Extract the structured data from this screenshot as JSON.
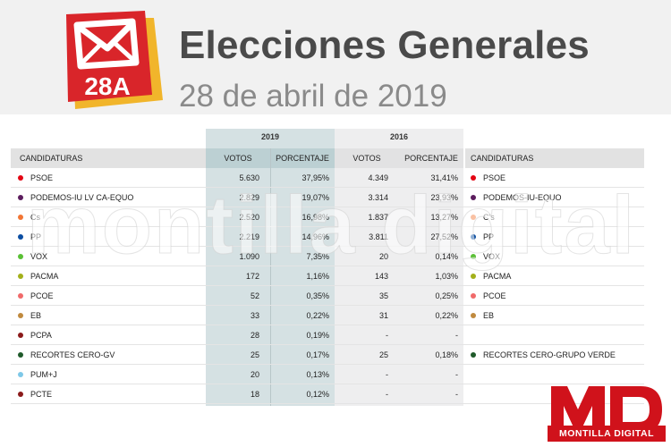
{
  "header": {
    "logo_text": "28A",
    "title": "Elecciones Generales",
    "subtitle": "28 de abril de 2019"
  },
  "table": {
    "year_2019": "2019",
    "year_2016": "2016",
    "headers": {
      "candidaturas_left": "CANDIDATURAS",
      "votos_2019": "VOTOS",
      "porcentaje_2019": "PORCENTAJE",
      "votos_2016": "VOTOS",
      "porcentaje_2016": "PORCENTAJE",
      "candidaturas_right": "CANDIDATURAS"
    },
    "rows": [
      {
        "party": "PSOE",
        "color": "#e30613",
        "votos_2019": "5.630",
        "pct_2019": "37,95%",
        "votos_2016": "4.349",
        "pct_2016": "31,41%",
        "party_2016": "PSOE",
        "color_2016": "#e30613"
      },
      {
        "party": "PODEMOS-IU LV CA-EQUO",
        "color": "#5c1d5e",
        "votos_2019": "2.829",
        "pct_2019": "19,07%",
        "votos_2016": "3.314",
        "pct_2016": "23,93%",
        "party_2016": "PODEMOS-IU-EQUO",
        "color_2016": "#5c1d5e"
      },
      {
        "party": "Cs",
        "color": "#f27533",
        "votos_2019": "2.520",
        "pct_2019": "16,98%",
        "votos_2016": "1.837",
        "pct_2016": "13,27%",
        "party_2016": "C's",
        "color_2016": "#f27533"
      },
      {
        "party": "PP",
        "color": "#0b4ea2",
        "votos_2019": "2.219",
        "pct_2019": "14,96%",
        "votos_2016": "3.811",
        "pct_2016": "27,52%",
        "party_2016": "PP",
        "color_2016": "#0b4ea2"
      },
      {
        "party": "VOX",
        "color": "#5ac035",
        "votos_2019": "1.090",
        "pct_2019": "7,35%",
        "votos_2016": "20",
        "pct_2016": "0,14%",
        "party_2016": "VOX",
        "color_2016": "#5ac035"
      },
      {
        "party": "PACMA",
        "color": "#a3b01a",
        "votos_2019": "172",
        "pct_2019": "1,16%",
        "votos_2016": "143",
        "pct_2016": "1,03%",
        "party_2016": "PACMA",
        "color_2016": "#a3b01a"
      },
      {
        "party": "PCOE",
        "color": "#f06a6a",
        "votos_2019": "52",
        "pct_2019": "0,35%",
        "votos_2016": "35",
        "pct_2016": "0,25%",
        "party_2016": "PCOE",
        "color_2016": "#f06a6a"
      },
      {
        "party": "EB",
        "color": "#c08a3e",
        "votos_2019": "33",
        "pct_2019": "0,22%",
        "votos_2016": "31",
        "pct_2016": "0,22%",
        "party_2016": "EB",
        "color_2016": "#c08a3e"
      },
      {
        "party": "PCPA",
        "color": "#8b1a1a",
        "votos_2019": "28",
        "pct_2019": "0,19%",
        "votos_2016": "-",
        "pct_2016": "-",
        "party_2016": "",
        "color_2016": ""
      },
      {
        "party": "RECORTES CERO-GV",
        "color": "#1f5a2a",
        "votos_2019": "25",
        "pct_2019": "0,17%",
        "votos_2016": "25",
        "pct_2016": "0,18%",
        "party_2016": "RECORTES CERO-GRUPO VERDE",
        "color_2016": "#1f5a2a"
      },
      {
        "party": "PUM+J",
        "color": "#7ec8e8",
        "votos_2019": "20",
        "pct_2019": "0,13%",
        "votos_2016": "-",
        "pct_2016": "-",
        "party_2016": "",
        "color_2016": ""
      },
      {
        "party": "PCTE",
        "color": "#8b1a1a",
        "votos_2019": "18",
        "pct_2019": "0,12%",
        "votos_2016": "-",
        "pct_2016": "-",
        "party_2016": "",
        "color_2016": ""
      }
    ]
  },
  "watermark": "montilla digital",
  "brand": {
    "logo_letters": "MD",
    "name": "MONTILLA DIGITAL",
    "color": "#d0121b"
  }
}
